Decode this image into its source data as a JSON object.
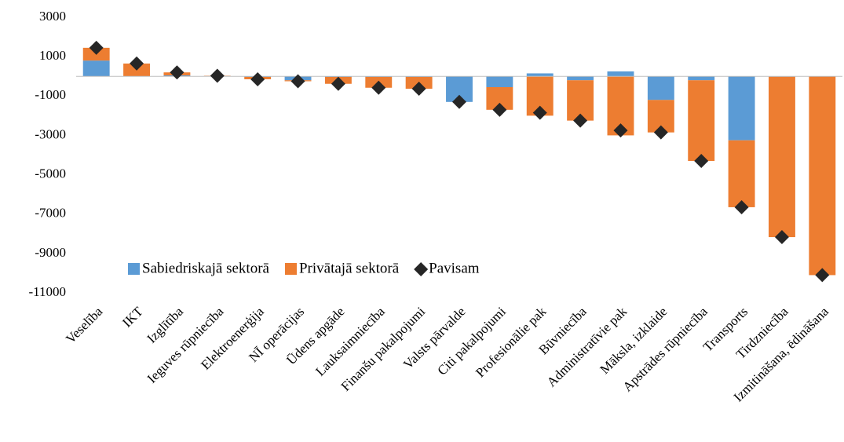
{
  "chart_data": {
    "type": "bar",
    "stacked": true,
    "categories": [
      "Veselība",
      "IKT",
      "Izglītība",
      "Ieguves rūpniecība",
      "Elektroenerģija",
      "NĪ operācijas",
      "Ūdens apgāde",
      "Lauksaimniecība",
      "Finanšu pakalpojumi",
      "Valsts pārvalde",
      "Citi pakalpojumi",
      "Profesionālie pak",
      "Būvniecība",
      "Administratīvie pak",
      "Māksla, izklaide",
      "Apstrādes rūpniecība",
      "Transports",
      "Tirdzniecība",
      "Izmitināšana, ēdināšana"
    ],
    "series": [
      {
        "name": "Sabiedriskajā sektorā",
        "color": "#5b9bd5",
        "values": [
          800,
          0,
          50,
          0,
          -30,
          -200,
          -30,
          -30,
          -30,
          -1300,
          -550,
          150,
          -200,
          250,
          -1200,
          -200,
          -3250,
          -20,
          0
        ]
      },
      {
        "name": "Privātajā sektorā",
        "color": "#ed7d31",
        "values": [
          650,
          650,
          150,
          30,
          -120,
          -50,
          -350,
          -550,
          -600,
          0,
          -1150,
          -2000,
          -2050,
          -3000,
          -1650,
          -4100,
          -3400,
          -8150,
          -10100
        ]
      },
      {
        "name": "Pavisam",
        "color": "#262626",
        "type": "scatter",
        "marker": "diamond",
        "values": [
          1450,
          650,
          200,
          30,
          -150,
          -250,
          -380,
          -580,
          -630,
          -1300,
          -1700,
          -1850,
          -2250,
          -2750,
          -2850,
          -4300,
          -6650,
          -8170,
          -10100
        ]
      }
    ],
    "ylim": [
      -11000,
      3000
    ],
    "yticks": [
      -11000,
      -9000,
      -7000,
      -5000,
      -3000,
      -1000,
      1000,
      3000
    ],
    "legend": "bottom-left"
  }
}
